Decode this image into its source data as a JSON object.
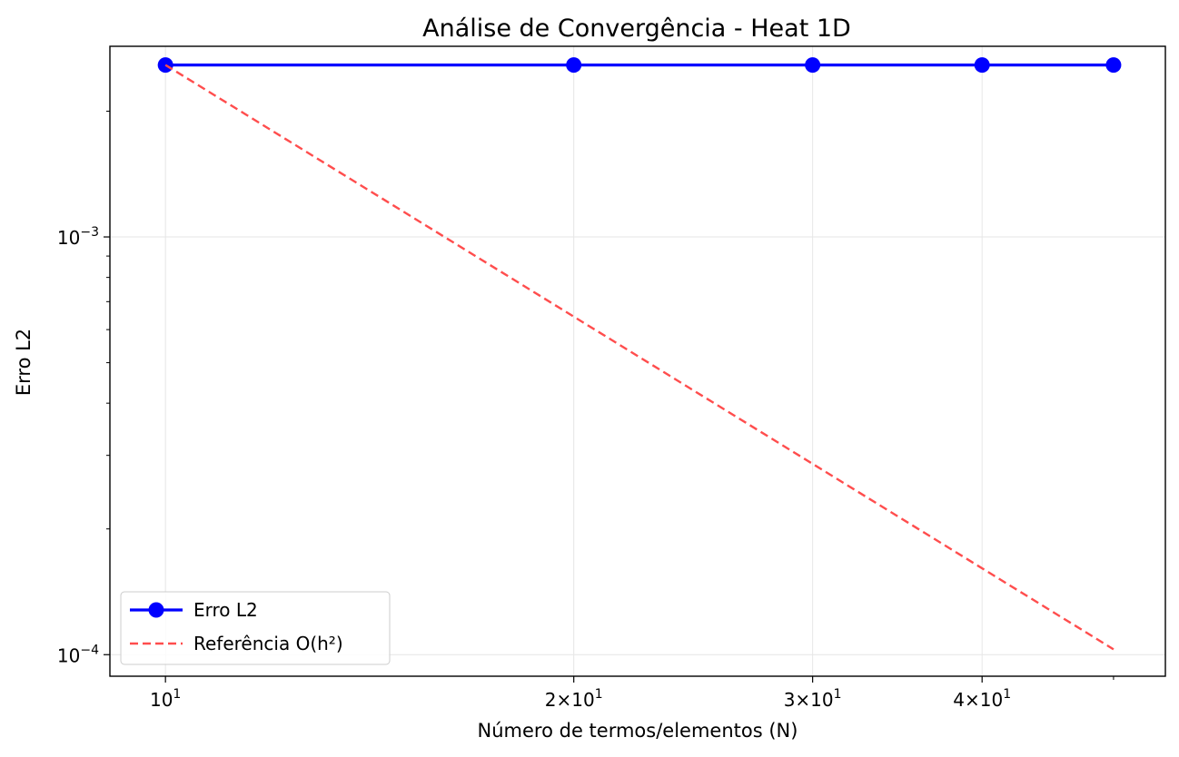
{
  "chart_data": {
    "type": "line",
    "title": "Análise de Convergência - Heat 1D",
    "xlabel": "Número de termos/elementos (N)",
    "ylabel": "Erro L2",
    "xscale": "log",
    "yscale": "log",
    "xlim": [
      9.1,
      54.6
    ],
    "ylim": [
      8.88e-05,
      0.00286
    ],
    "grid": true,
    "legend_position": "lower-left",
    "x_ticks": [
      {
        "value": 10,
        "base": "10",
        "exp": "1"
      },
      {
        "value": 20,
        "base": "2×10",
        "exp": "1"
      },
      {
        "value": 30,
        "base": "3×10",
        "exp": "1"
      },
      {
        "value": 40,
        "base": "4×10",
        "exp": "1"
      }
    ],
    "y_ticks": [
      {
        "value": 0.0001,
        "base": "10",
        "exp": "−4"
      },
      {
        "value": 0.001,
        "base": "10",
        "exp": "−3"
      }
    ],
    "series": [
      {
        "name": "Erro L2",
        "x": [
          10,
          20,
          30,
          40,
          50
        ],
        "y": [
          0.00258,
          0.00258,
          0.00258,
          0.00258,
          0.00258
        ],
        "color": "#0000ff",
        "style": "solid",
        "marker": "circle"
      },
      {
        "name": "Referência O(h²)",
        "x": [
          10,
          50
        ],
        "y": [
          0.00258,
          0.000103
        ],
        "color": "#ff4d4d",
        "style": "dashed",
        "marker": "none"
      }
    ]
  }
}
